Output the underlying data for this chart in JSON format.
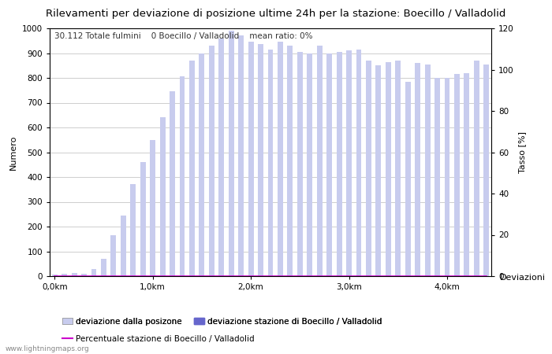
{
  "title": "Rilevamenti per deviazione di posizione ultime 24h per la stazione: Boecillo / Valladolid",
  "subtitle": "30.112 Totale fulmini    0 Boecillo / Valladolid    mean ratio: 0%",
  "ylabel_left": "Numero",
  "ylabel_right": "Tasso [%]",
  "xlabel_right": "Deviazioni",
  "watermark": "www.lightningmaps.org",
  "ylim_left": [
    0,
    1000
  ],
  "ylim_right": [
    0,
    120
  ],
  "xtick_positions": [
    0,
    10,
    20,
    30,
    40
  ],
  "xtick_labels": [
    "0,0km",
    "1,0km",
    "2,0km",
    "3,0km",
    "4,0km"
  ],
  "ytick_left": [
    0,
    100,
    200,
    300,
    400,
    500,
    600,
    700,
    800,
    900,
    1000
  ],
  "ytick_right": [
    0,
    20,
    40,
    60,
    80,
    100,
    120
  ],
  "bar_color_light": "#c8ccee",
  "bar_color_dark": "#6666cc",
  "line_color": "#cc00cc",
  "bar_values": [
    5,
    10,
    12,
    8,
    30,
    70,
    165,
    245,
    370,
    460,
    550,
    640,
    745,
    805,
    870,
    900,
    930,
    960,
    990,
    970,
    945,
    935,
    915,
    945,
    930,
    905,
    900,
    930,
    900,
    905,
    910,
    915,
    870,
    850,
    865,
    870,
    785,
    860,
    855,
    800,
    800,
    815,
    820,
    870,
    855
  ],
  "station_values": [
    0,
    0,
    0,
    0,
    0,
    0,
    0,
    0,
    0,
    0,
    0,
    0,
    0,
    0,
    0,
    0,
    0,
    0,
    0,
    0,
    0,
    0,
    0,
    0,
    0,
    0,
    0,
    0,
    0,
    0,
    0,
    0,
    0,
    0,
    0,
    0,
    0,
    0,
    0,
    0,
    0,
    0,
    0,
    0,
    0
  ],
  "ratio_values": [
    0,
    0,
    0,
    0,
    0,
    0,
    0,
    0,
    0,
    0,
    0,
    0,
    0,
    0,
    0,
    0,
    0,
    0,
    0,
    0,
    0,
    0,
    0,
    0,
    0,
    0,
    0,
    0,
    0,
    0,
    0,
    0,
    0,
    0,
    0,
    0,
    0,
    0,
    0,
    0,
    0,
    0,
    0,
    0,
    0
  ],
  "legend_light_label": "deviazione dalla posizone",
  "legend_dark_label": "deviazione stazione di Boecillo / Valladolid",
  "legend_line_label": "Percentuale stazione di Boecillo / Valladolid",
  "bg_color": "#ffffff",
  "grid_color": "#bbbbbb",
  "title_fontsize": 9.5,
  "subtitle_fontsize": 7.5,
  "axis_fontsize": 8,
  "tick_fontsize": 7.5
}
